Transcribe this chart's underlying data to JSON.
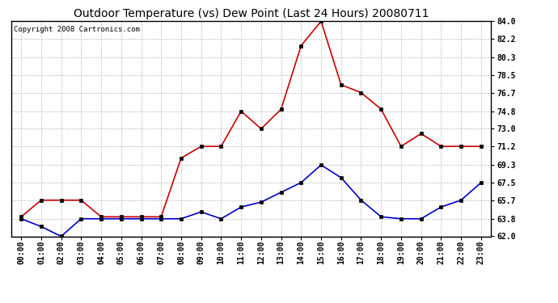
{
  "title": "Outdoor Temperature (vs) Dew Point (Last 24 Hours) 20080711",
  "copyright": "Copyright 2008 Cartronics.com",
  "hours": [
    "00:00",
    "01:00",
    "02:00",
    "03:00",
    "04:00",
    "05:00",
    "06:00",
    "07:00",
    "08:00",
    "09:00",
    "10:00",
    "11:00",
    "12:00",
    "13:00",
    "14:00",
    "15:00",
    "16:00",
    "17:00",
    "18:00",
    "19:00",
    "20:00",
    "21:00",
    "22:00",
    "23:00"
  ],
  "temp": [
    64.0,
    65.7,
    65.7,
    65.7,
    64.0,
    64.0,
    64.0,
    64.0,
    70.0,
    71.2,
    71.2,
    74.8,
    73.0,
    75.0,
    81.5,
    84.0,
    77.5,
    76.7,
    75.0,
    71.2,
    72.5,
    71.2,
    71.2,
    71.2
  ],
  "dewpoint": [
    63.8,
    63.0,
    62.0,
    63.8,
    63.8,
    63.8,
    63.8,
    63.8,
    63.8,
    64.5,
    63.8,
    65.0,
    65.5,
    66.5,
    67.5,
    69.3,
    68.0,
    65.7,
    64.0,
    63.8,
    63.8,
    65.0,
    65.7,
    67.5
  ],
  "temp_color": "#cc0000",
  "dew_color": "#0000cc",
  "bg_color": "#ffffff",
  "plot_bg": "#ffffff",
  "grid_color": "#bbbbbb",
  "ylim": [
    62.0,
    84.0
  ],
  "yticks": [
    62.0,
    63.8,
    65.7,
    67.5,
    69.3,
    71.2,
    73.0,
    74.8,
    76.7,
    78.5,
    80.3,
    82.2,
    84.0
  ],
  "title_fontsize": 10,
  "copyright_fontsize": 6.5,
  "tick_fontsize": 7,
  "marker": "s",
  "marker_size": 2.5,
  "linewidth": 1.2
}
